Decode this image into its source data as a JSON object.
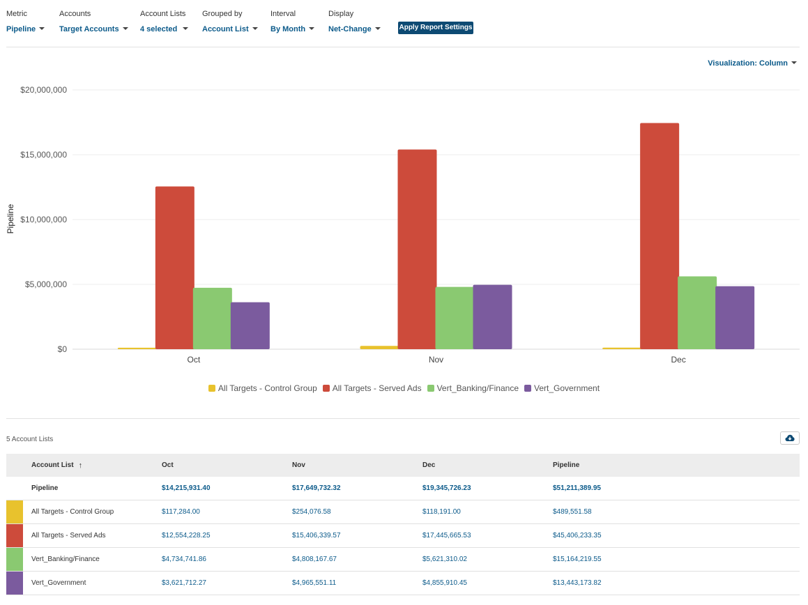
{
  "filters": [
    {
      "label": "Metric",
      "value": "Pipeline"
    },
    {
      "label": "Accounts",
      "value": "Target Accounts"
    },
    {
      "label": "Account Lists",
      "value": "4 selected"
    },
    {
      "label": "Grouped by",
      "value": "Account List"
    },
    {
      "label": "Interval",
      "value": "By Month"
    },
    {
      "label": "Display",
      "value": "Net-Change"
    }
  ],
  "apply_button": "Apply Report Settings",
  "visualization_toggle": "Visualization: Column",
  "chart_data": {
    "type": "bar",
    "categories": [
      "Oct",
      "Nov",
      "Dec"
    ],
    "ylabel": "Pipeline",
    "ylim": [
      0,
      20000000
    ],
    "yticks": [
      "$0",
      "$5,000,000",
      "$10,000,000",
      "$15,000,000",
      "$20,000,000"
    ],
    "grid": true,
    "legend_position": "bottom",
    "series": [
      {
        "name": "All Targets - Control Group",
        "color": "#e8c22d",
        "values": [
          117284.0,
          254076.58,
          118191.0
        ]
      },
      {
        "name": "All Targets - Served Ads",
        "color": "#cd4b3b",
        "values": [
          12554228.25,
          15406339.57,
          17445665.53
        ]
      },
      {
        "name": "Vert_Banking/Finance",
        "color": "#8ac971",
        "values": [
          4734741.86,
          4808167.67,
          5621310.02
        ]
      },
      {
        "name": "Vert_Government",
        "color": "#7b5b9e",
        "values": [
          3621712.27,
          4965551.11,
          4855910.45
        ]
      }
    ]
  },
  "table": {
    "count_label": "5 Account Lists",
    "headers": {
      "name": "Account List",
      "oct": "Oct",
      "nov": "Nov",
      "dec": "Dec",
      "total": "Pipeline"
    },
    "rows": [
      {
        "name": "Pipeline",
        "oct": "$14,215,931.40",
        "nov": "$17,649,732.32",
        "dec": "$19,345,726.23",
        "total": "$51,211,389.95"
      },
      {
        "name": "All Targets - Control Group",
        "color": "#e8c22d",
        "oct": "$117,284.00",
        "nov": "$254,076.58",
        "dec": "$118,191.00",
        "total": "$489,551.58"
      },
      {
        "name": "All Targets - Served Ads",
        "color": "#cd4b3b",
        "oct": "$12,554,228.25",
        "nov": "$15,406,339.57",
        "dec": "$17,445,665.53",
        "total": "$45,406,233.35"
      },
      {
        "name": "Vert_Banking/Finance",
        "color": "#8ac971",
        "oct": "$4,734,741.86",
        "nov": "$4,808,167.67",
        "dec": "$5,621,310.02",
        "total": "$15,164,219.55"
      },
      {
        "name": "Vert_Government",
        "color": "#7b5b9e",
        "oct": "$3,621,712.27",
        "nov": "$4,965,551.11",
        "dec": "$4,855,910.45",
        "total": "$13,443,173.82"
      }
    ]
  }
}
